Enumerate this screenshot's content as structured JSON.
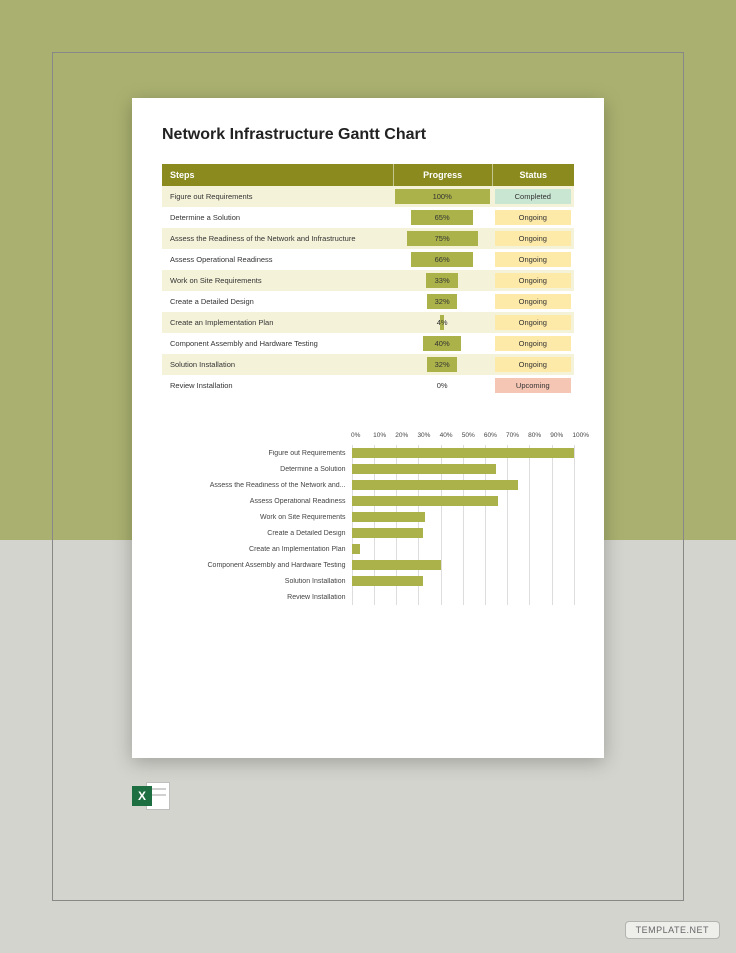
{
  "page": {
    "bg_top_color": "#aab170",
    "bg_bottom_color": "#d4d4ce",
    "frame_border_color": "#888888",
    "watermark": "TEMPLATE.NET"
  },
  "document": {
    "title": "Network Infrastructure Gantt Chart",
    "title_fontsize": 16,
    "bg_color": "#ffffff"
  },
  "table": {
    "header_bg": "#8a8a1f",
    "header_text_color": "#ffffff",
    "row_alt_bg": "#f4f2d9",
    "row_bg": "#ffffff",
    "columns": {
      "steps": "Steps",
      "progress": "Progress",
      "status": "Status"
    },
    "progress_bar_color": "#aab249",
    "status_colors": {
      "Completed": "#c9e6d2",
      "Ongoing": "#fde9a8",
      "Upcoming": "#f6c6b5"
    },
    "rows": [
      {
        "step": "Figure out Requirements",
        "progress": 100,
        "status": "Completed"
      },
      {
        "step": "Determine a Solution",
        "progress": 65,
        "status": "Ongoing"
      },
      {
        "step": "Assess the Readiness of the Network and Infrastructure",
        "progress": 75,
        "status": "Ongoing"
      },
      {
        "step": "Assess Operational Readiness",
        "progress": 66,
        "status": "Ongoing"
      },
      {
        "step": "Work on Site Requirements",
        "progress": 33,
        "status": "Ongoing"
      },
      {
        "step": "Create a Detailed Design",
        "progress": 32,
        "status": "Ongoing"
      },
      {
        "step": "Create an Implementation Plan",
        "progress": 4,
        "status": "Ongoing"
      },
      {
        "step": "Component Assembly and Hardware Testing",
        "progress": 40,
        "status": "Ongoing"
      },
      {
        "step": "Solution Installation",
        "progress": 32,
        "status": "Ongoing"
      },
      {
        "step": "Review Installation",
        "progress": 0,
        "status": "Upcoming"
      }
    ]
  },
  "chart": {
    "type": "bar-horizontal",
    "xlim": [
      0,
      100
    ],
    "xtick_step": 10,
    "xtick_suffix": "%",
    "bar_color": "#aab249",
    "grid_color": "#dddddd",
    "label_fontsize": 7,
    "items": [
      {
        "label": "Figure out Requirements",
        "value": 100
      },
      {
        "label": "Determine a Solution",
        "value": 65
      },
      {
        "label": "Assess the Readiness of the Network and...",
        "value": 75
      },
      {
        "label": "Assess Operational Readiness",
        "value": 66
      },
      {
        "label": "Work on Site Requirements",
        "value": 33
      },
      {
        "label": "Create a Detailed Design",
        "value": 32
      },
      {
        "label": "Create an Implementation Plan",
        "value": 4
      },
      {
        "label": "Component Assembly and Hardware Testing",
        "value": 40
      },
      {
        "label": "Solution Installation",
        "value": 32
      },
      {
        "label": "Review Installation",
        "value": 0
      }
    ]
  },
  "excel_icon": {
    "bg_color": "#1d6f42",
    "letter": "X"
  }
}
